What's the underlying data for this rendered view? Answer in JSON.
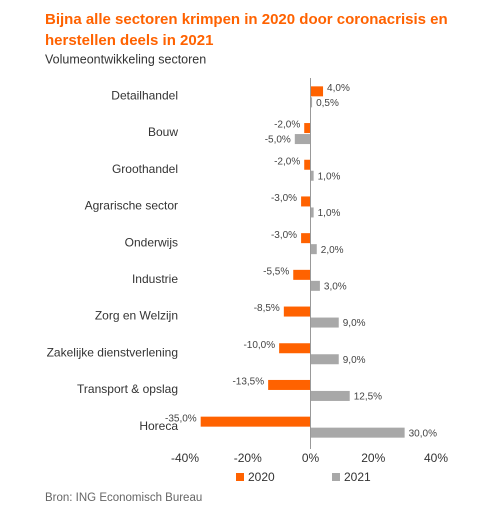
{
  "chart_data": {
    "type": "barh",
    "title_lines": [
      "Bijna alle sectoren krimpen in 2020 door coronacrisis en",
      "herstellen deels in 2021"
    ],
    "subtitle": "Volumeontwikkeling sectoren",
    "categories": [
      "Detailhandel",
      "Bouw",
      "Groothandel",
      "Agrarische sector",
      "Onderwijs",
      "Industrie",
      "Zorg en Welzijn",
      "Zakelijke dienstverlening",
      "Transport & opslag",
      "Horeca"
    ],
    "series": [
      {
        "name": "2020",
        "color": "#ff6200",
        "values": [
          4.0,
          -2.0,
          -2.0,
          -3.0,
          -3.0,
          -5.5,
          -8.5,
          -10.0,
          -13.5,
          -35.0
        ],
        "value_labels": [
          "4,0%",
          "-2,0%",
          "-2,0%",
          "-3,0%",
          "-3,0%",
          "-5,5%",
          "-8,5%",
          "-10,0%",
          "-13,5%",
          "-35,0%"
        ]
      },
      {
        "name": "2021",
        "color": "#a8a8a8",
        "values": [
          0.5,
          -5.0,
          1.0,
          1.0,
          2.0,
          3.0,
          9.0,
          9.0,
          12.5,
          30.0
        ],
        "value_labels": [
          "0,5%",
          "-5,0%",
          "1,0%",
          "1,0%",
          "2,0%",
          "3,0%",
          "9,0%",
          "9,0%",
          "12,5%",
          "30,0%"
        ]
      }
    ],
    "xlim": [
      -40,
      40
    ],
    "xticks": [
      {
        "value": -40,
        "label": "-40%"
      },
      {
        "value": -20,
        "label": "-20%"
      },
      {
        "value": 0,
        "label": "0%"
      },
      {
        "value": 20,
        "label": "20%"
      },
      {
        "value": 40,
        "label": "40%"
      }
    ],
    "source": "Bron: ING Economisch Bureau"
  }
}
